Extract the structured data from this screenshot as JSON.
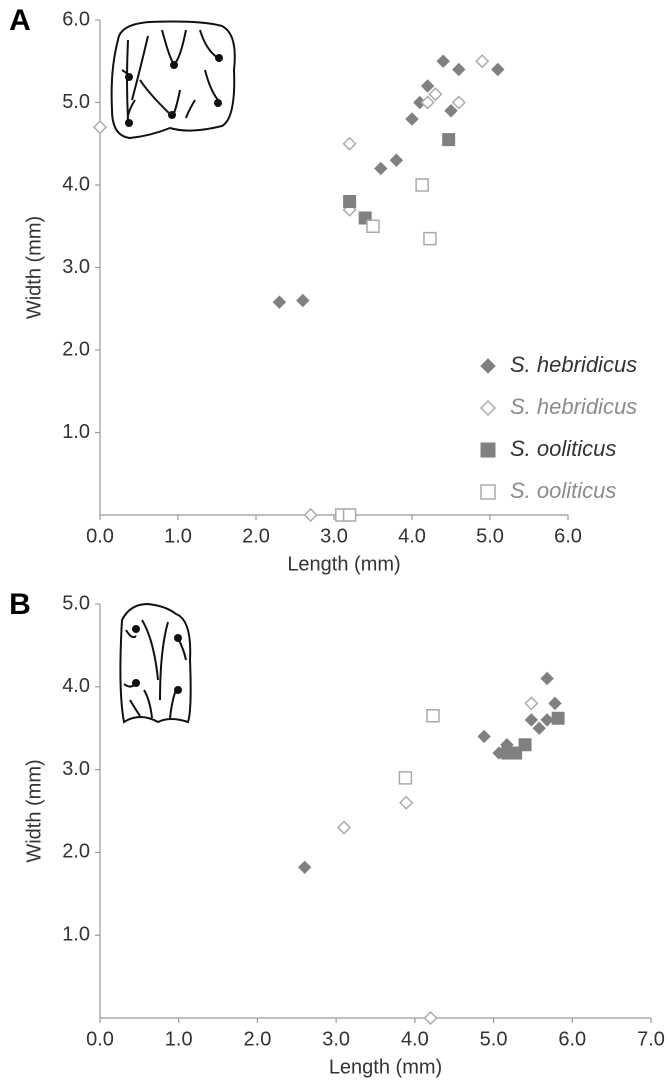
{
  "chart_data": [
    {
      "type": "scatter",
      "panel_label": "A",
      "x_label": "Length (mm)",
      "y_label": "Width (mm)",
      "xlim": [
        0,
        6
      ],
      "ylim": [
        0,
        6
      ],
      "xticks": [
        {
          "value": 0,
          "label": "0.0"
        },
        {
          "value": 1,
          "label": "1.0"
        },
        {
          "value": 2,
          "label": "2.0"
        },
        {
          "value": 3,
          "label": "3.0"
        },
        {
          "value": 4,
          "label": "4.0"
        },
        {
          "value": 5,
          "label": "5.0"
        },
        {
          "value": 6,
          "label": "6.0"
        }
      ],
      "yticks": [
        {
          "value": 1,
          "label": "1.0"
        },
        {
          "value": 2,
          "label": "2.0"
        },
        {
          "value": 3,
          "label": "3.0"
        },
        {
          "value": 4,
          "label": "4.0"
        },
        {
          "value": 5,
          "label": "5.0"
        },
        {
          "value": 6,
          "label": "6.0"
        }
      ],
      "series": [
        {
          "name": "S. hebridicus",
          "color": "#808080",
          "text_color": "#333333",
          "marker": "diamond",
          "filled": true,
          "x": [
            2.3,
            2.6,
            3.6,
            3.8,
            4.0,
            4.1,
            4.2,
            4.4,
            4.5,
            4.6,
            5.1
          ],
          "y": [
            2.58,
            2.6,
            4.2,
            4.3,
            4.8,
            5.0,
            5.2,
            5.5,
            4.9,
            5.4,
            5.4
          ]
        },
        {
          "name": "S. hebridicus",
          "color": "#aaaaaa",
          "text_color": "#8c8c8c",
          "marker": "diamond",
          "filled": false,
          "x": [
            0,
            3.2,
            3.2,
            2.7,
            4.2,
            4.3,
            4.6,
            4.9
          ],
          "y": [
            4.7,
            4.5,
            3.7,
            0,
            5.0,
            5.1,
            5.0,
            5.5
          ]
        },
        {
          "name": "S. ooliticus",
          "color": "#808080",
          "text_color": "#333333",
          "marker": "square",
          "filled": true,
          "x": [
            3.2,
            3.4,
            4.47
          ],
          "y": [
            3.8,
            3.6,
            4.55
          ]
        },
        {
          "name": "S. ooliticus",
          "color": "#aaaaaa",
          "text_color": "#8c8c8c",
          "marker": "square",
          "filled": false,
          "x": [
            3.5,
            4.13,
            4.23,
            3.1,
            3.2
          ],
          "y": [
            3.5,
            4.0,
            3.35,
            0,
            0
          ]
        }
      ]
    },
    {
      "type": "scatter",
      "panel_label": "B",
      "x_label": "Length (mm)",
      "y_label": "Width (mm)",
      "xlim": [
        0,
        7
      ],
      "ylim": [
        0,
        5
      ],
      "xticks": [
        {
          "value": 0,
          "label": "0.0"
        },
        {
          "value": 1,
          "label": "1.0"
        },
        {
          "value": 2,
          "label": "2.0"
        },
        {
          "value": 3,
          "label": "3.0"
        },
        {
          "value": 4,
          "label": "4.0"
        },
        {
          "value": 5,
          "label": "5.0"
        },
        {
          "value": 6,
          "label": "6.0"
        },
        {
          "value": 7,
          "label": "7.0"
        }
      ],
      "yticks": [
        {
          "value": 1,
          "label": "1.0"
        },
        {
          "value": 2,
          "label": "2.0"
        },
        {
          "value": 3,
          "label": "3.0"
        },
        {
          "value": 4,
          "label": "4.0"
        },
        {
          "value": 5,
          "label": "5.0"
        }
      ],
      "series": [
        {
          "color": "#808080",
          "marker": "diamond",
          "filled": true,
          "x": [
            2.6,
            4.88,
            5.07,
            5.17,
            5.48,
            5.58,
            5.68,
            5.68,
            5.78
          ],
          "y": [
            1.82,
            3.4,
            3.2,
            3.3,
            3.6,
            3.5,
            4.1,
            3.6,
            3.8
          ]
        },
        {
          "color": "#aaaaaa",
          "marker": "diamond",
          "filled": false,
          "x": [
            3.1,
            3.89,
            5.48,
            4.2
          ],
          "y": [
            2.3,
            2.6,
            3.8,
            0
          ]
        },
        {
          "color": "#808080",
          "marker": "square",
          "filled": true,
          "x": [
            5.18,
            5.28,
            5.4,
            5.82
          ],
          "y": [
            3.2,
            3.2,
            3.3,
            3.62
          ]
        },
        {
          "color": "#aaaaaa",
          "marker": "square",
          "filled": false,
          "x": [
            3.88,
            4.23
          ],
          "y": [
            2.9,
            3.65
          ]
        }
      ]
    }
  ]
}
